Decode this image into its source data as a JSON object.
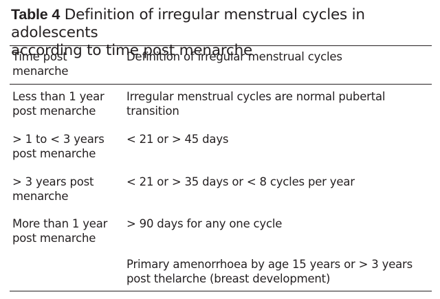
{
  "table": {
    "label": "Table 4",
    "title_line1": "Definition of irregular menstrual cycles in adolescents",
    "title_line2": "according to time post menarche",
    "headers": {
      "col1_line1": "Time post",
      "col1_line2": "menarche",
      "col2": "Definition of irregular menstrual cycles"
    },
    "rows": [
      {
        "time_line1": "Less than 1 year",
        "time_line2": "post menarche",
        "definition_line1": "Irregular menstrual cycles are normal pubertal",
        "definition_line2": "transition"
      },
      {
        "time_line1": "> 1 to < 3 years",
        "time_line2": "post menarche",
        "definition_line1": "< 21 or > 45 days",
        "definition_line2": ""
      },
      {
        "time_line1": "> 3 years post",
        "time_line2": "menarche",
        "definition_line1": "< 21 or > 35 days or < 8 cycles per year",
        "definition_line2": ""
      },
      {
        "time_line1": "More than 1 year",
        "time_line2": "post menarche",
        "definition_line1": "> 90 days for any one cycle",
        "definition_line2": ""
      },
      {
        "time_line1": "",
        "time_line2": "",
        "definition_line1": "Primary amenorrhoea by age 15 years or > 3 years",
        "definition_line2": "post thelarche (breast development)"
      }
    ]
  }
}
